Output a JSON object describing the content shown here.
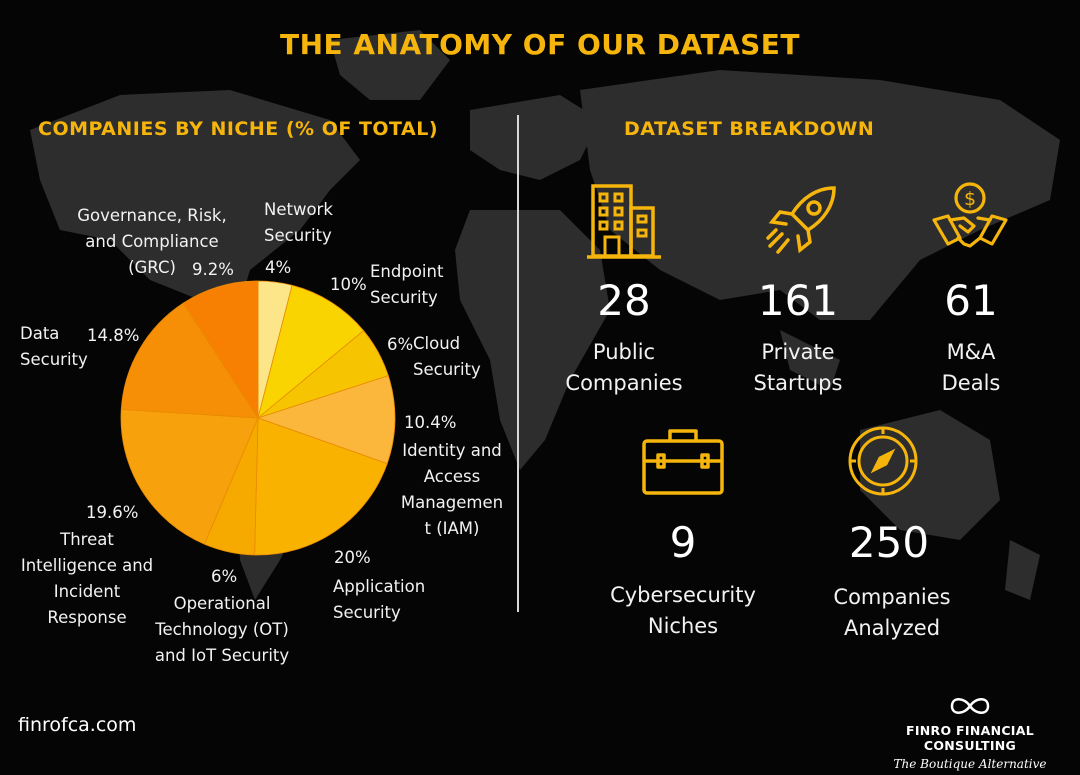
{
  "title": "THE ANATOMY OF OUR DATASET",
  "left_section_title": "COMPANIES BY NICHE (% OF TOTAL)",
  "right_section_title": "DATASET BREAKDOWN",
  "chart_data": {
    "type": "pie",
    "title": "COMPANIES BY NICHE (% OF TOTAL)",
    "slices": [
      {
        "label": "Network Security",
        "label_lines": [
          "Network",
          "Security"
        ],
        "pct_text": "4%",
        "value": 4,
        "color": "#fde68a"
      },
      {
        "label": "Endpoint Security",
        "label_lines": [
          "Endpoint",
          "Security"
        ],
        "pct_text": "10%",
        "value": 10,
        "color": "#f9d400"
      },
      {
        "label": "Cloud Security",
        "label_lines": [
          "Cloud",
          "Security"
        ],
        "pct_text": "6%",
        "value": 6,
        "color": "#f6c400"
      },
      {
        "label": "Identity and Access Management (IAM)",
        "label_lines": [
          "Identity and",
          "Access",
          "Managemen",
          "t (IAM)"
        ],
        "pct_text": "10.4%",
        "value": 10.4,
        "color": "#fbb73c"
      },
      {
        "label": "Application Security",
        "label_lines": [
          "Application",
          "Security"
        ],
        "pct_text": "20%",
        "value": 20,
        "color": "#f9b200"
      },
      {
        "label": "Operational Technology (OT) and IoT Security",
        "label_lines": [
          "Operational",
          "Technology (OT)",
          "and IoT Security"
        ],
        "pct_text": "6%",
        "value": 6,
        "color": "#f6aa00"
      },
      {
        "label": "Threat Intelligence and Incident Response",
        "label_lines": [
          "Threat",
          "Intelligence and",
          "Incident",
          "Response"
        ],
        "pct_text": "19.6%",
        "value": 19.6,
        "color": "#f7a20c"
      },
      {
        "label": "Data Security",
        "label_lines": [
          "Data",
          "Security"
        ],
        "pct_text": "14.8%",
        "value": 14.8,
        "color": "#f68f06"
      },
      {
        "label": "Governance, Risk, and Compliance (GRC)",
        "label_lines": [
          "Governance, Risk,",
          "and Compliance",
          "(GRC)"
        ],
        "pct_text": "9.2%",
        "value": 9.2,
        "color": "#f78002"
      }
    ]
  },
  "stats": [
    {
      "number": "28",
      "label_lines": [
        "Public",
        "Companies"
      ],
      "icon": "building-icon"
    },
    {
      "number": "161",
      "label_lines": [
        "Private",
        "Startups"
      ],
      "icon": "rocket-icon"
    },
    {
      "number": "61",
      "label_lines": [
        "M&A",
        "Deals"
      ],
      "icon": "handshake-dollar-icon"
    },
    {
      "number": "9",
      "label_lines": [
        "Cybersecurity",
        "Niches"
      ],
      "icon": "briefcase-icon"
    },
    {
      "number": "250",
      "label_lines": [
        "Companies",
        "Analyzed"
      ],
      "icon": "compass-icon"
    }
  ],
  "colors": {
    "accent": "#f5b50c",
    "background": "#050505",
    "map": "#2e2e2e"
  },
  "footer": {
    "url": "finrofca.com",
    "brand_name": "FINRO FINANCIAL CONSULTING",
    "brand_tagline": "The Boutique Alternative",
    "brand_logo": "infinity-logo-icon"
  }
}
